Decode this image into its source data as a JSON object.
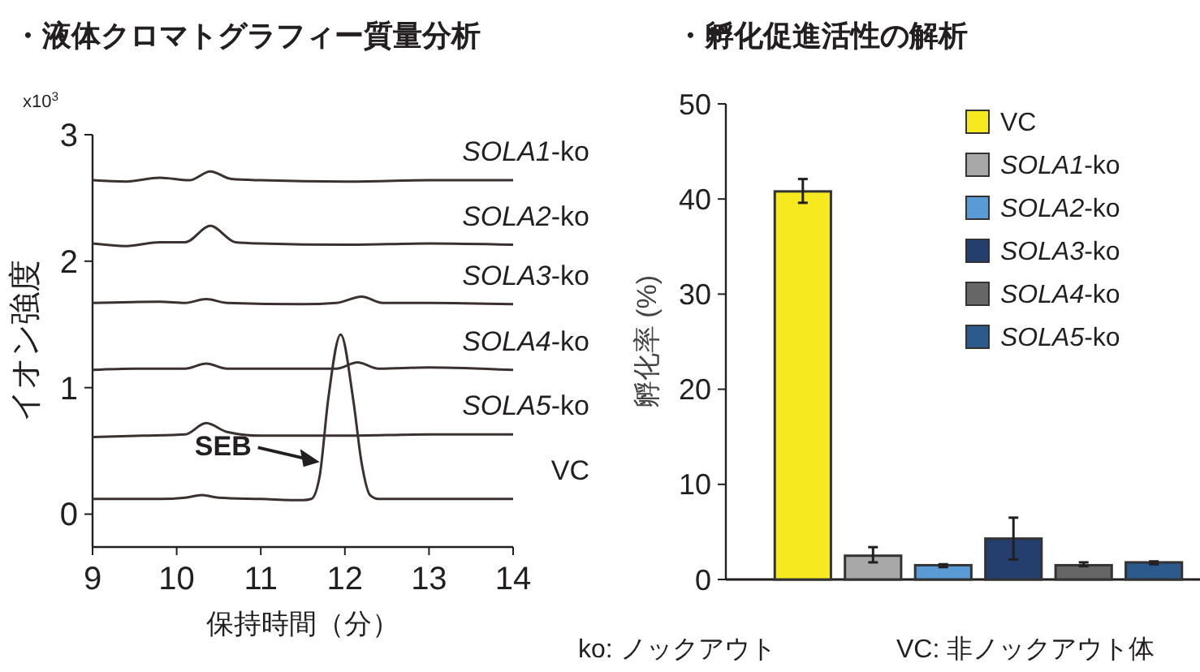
{
  "chart_data": [
    {
      "type": "line",
      "title": "・液体クロマトグラフィー質量分析",
      "xlabel": "保持時間（分）",
      "ylabel": "イオン強度",
      "xlim": [
        9,
        14
      ],
      "xticks": [
        9,
        10,
        11,
        12,
        13,
        14
      ],
      "ylim": [
        -0.26,
        3
      ],
      "yticks": [
        0,
        1,
        2,
        3
      ],
      "grid": false,
      "marker": "none",
      "line_style": "solid",
      "annotations": [
        "x10$^{3}$",
        {
          "text": "SEB",
          "x": 11.7,
          "y": 0.45
        }
      ],
      "series": [
        {
          "name": "SOLA1-ko",
          "color": "#3b3131",
          "x": [
            9,
            9.4,
            9.8,
            10.15,
            10.4,
            10.65,
            11,
            12,
            13,
            14
          ],
          "values": [
            2.64,
            2.63,
            2.66,
            2.64,
            2.71,
            2.65,
            2.64,
            2.63,
            2.64,
            2.64
          ]
        },
        {
          "name": "SOLA2-ko",
          "color": "#3b3131",
          "x": [
            9,
            9.4,
            9.8,
            10.1,
            10.4,
            10.7,
            11,
            12,
            13,
            14
          ],
          "values": [
            2.14,
            2.12,
            2.15,
            2.15,
            2.28,
            2.15,
            2.14,
            2.13,
            2.14,
            2.13
          ]
        },
        {
          "name": "SOLA3-ko",
          "color": "#3b3131",
          "x": [
            9,
            9.8,
            10.1,
            10.35,
            10.6,
            11.5,
            11.9,
            12.2,
            12.45,
            13,
            14
          ],
          "values": [
            1.67,
            1.68,
            1.67,
            1.7,
            1.67,
            1.66,
            1.67,
            1.72,
            1.67,
            1.67,
            1.66
          ]
        },
        {
          "name": "SOLA4-ko",
          "color": "#3b3131",
          "x": [
            9,
            9.5,
            10.1,
            10.35,
            10.6,
            11.5,
            11.9,
            12.15,
            12.4,
            13,
            14
          ],
          "values": [
            1.14,
            1.15,
            1.15,
            1.19,
            1.15,
            1.15,
            1.15,
            1.2,
            1.15,
            1.16,
            1.14
          ]
        },
        {
          "name": "SOLA5-ko",
          "color": "#3b3131",
          "x": [
            9,
            9.6,
            10.1,
            10.35,
            10.6,
            11,
            12,
            13,
            14
          ],
          "values": [
            0.61,
            0.62,
            0.63,
            0.72,
            0.65,
            0.62,
            0.62,
            0.63,
            0.63
          ]
        },
        {
          "name": "VC",
          "color": "#3b3131",
          "x": [
            9,
            9.8,
            10.1,
            10.3,
            10.5,
            11,
            11.5,
            11.6,
            11.7,
            11.8,
            11.95,
            12.1,
            12.2,
            12.3,
            12.4,
            13,
            14
          ],
          "values": [
            0.12,
            0.12,
            0.13,
            0.15,
            0.13,
            0.12,
            0.11,
            0.12,
            0.3,
            0.9,
            1.42,
            0.9,
            0.4,
            0.15,
            0.12,
            0.12,
            0.12
          ]
        }
      ]
    },
    {
      "type": "bar",
      "title": "・孵化促進活性の解析",
      "ylabel": "孵化率 (%)",
      "categories": [
        null
      ],
      "ylim": [
        0,
        50
      ],
      "yticks": [
        0,
        10,
        20,
        30,
        40,
        50
      ],
      "tick_labels": "y",
      "grid": false,
      "legend": "top right",
      "annotations": [
        "ko: ノックアウト",
        "VC: 非ノックアウト体"
      ],
      "series": [
        {
          "name": "VC",
          "color": "#f7e920",
          "values": [
            40.8
          ],
          "errors": [
            [
              39.6,
              42.1
            ]
          ]
        },
        {
          "name": "SOLA1-ko",
          "color": "#a8a8a8",
          "values": [
            2.5
          ],
          "errors": [
            [
              1.8,
              3.4
            ]
          ]
        },
        {
          "name": "SOLA2-ko",
          "color": "#5b9bd5",
          "values": [
            1.5
          ],
          "errors": [
            [
              1.3,
              1.6
            ]
          ]
        },
        {
          "name": "SOLA3-ko",
          "color": "#243e6e",
          "values": [
            4.3
          ],
          "errors": [
            [
              2.1,
              6.5
            ]
          ]
        },
        {
          "name": "SOLA4-ko",
          "color": "#666666",
          "values": [
            1.5
          ],
          "errors": [
            [
              1.4,
              1.8
            ]
          ]
        },
        {
          "name": "SOLA5-ko",
          "color": "#2c5a8c",
          "values": [
            1.8
          ],
          "errors": [
            [
              1.6,
              1.9
            ]
          ]
        }
      ]
    }
  ]
}
